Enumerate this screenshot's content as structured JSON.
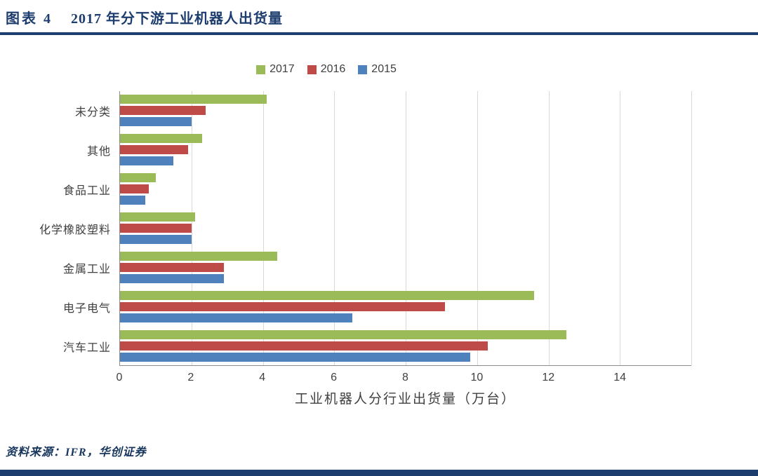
{
  "header": {
    "label": "图表 4",
    "title": "2017 年分下游工业机器人出货量"
  },
  "chart_data": {
    "type": "bar",
    "orientation": "horizontal",
    "title": "2017 年分下游工业机器人出货量",
    "categories": [
      "未分类",
      "其他",
      "食品工业",
      "化学橡胶塑料",
      "金属工业",
      "电子电气",
      "汽车工业"
    ],
    "series": [
      {
        "name": "2017",
        "color": "#9bbb59",
        "values": [
          4.1,
          2.3,
          1.0,
          2.1,
          4.4,
          11.6,
          12.5
        ]
      },
      {
        "name": "2016",
        "color": "#be4b48",
        "values": [
          2.4,
          1.9,
          0.8,
          2.0,
          2.9,
          9.1,
          10.3
        ]
      },
      {
        "name": "2015",
        "color": "#4f81bd",
        "values": [
          2.0,
          1.5,
          0.7,
          2.0,
          2.9,
          6.5,
          9.8
        ]
      }
    ],
    "xlabel": "工业机器人分行业出货量（万台）",
    "ylabel": "",
    "xlim": [
      0,
      16
    ],
    "xticks": [
      0,
      2,
      4,
      6,
      8,
      10,
      12,
      14
    ],
    "grid": true,
    "grid_step": 2,
    "legend_position": "top"
  },
  "footer": {
    "source": "资料来源：IFR，华创证券"
  },
  "colors": {
    "accent_navy": "#1c3d6e",
    "series_2017": "#9bbb59",
    "series_2016": "#be4b48",
    "series_2015": "#4f81bd",
    "gridline": "#d9d9d9",
    "axis_line": "#8c8c8c",
    "text": "#404040"
  }
}
